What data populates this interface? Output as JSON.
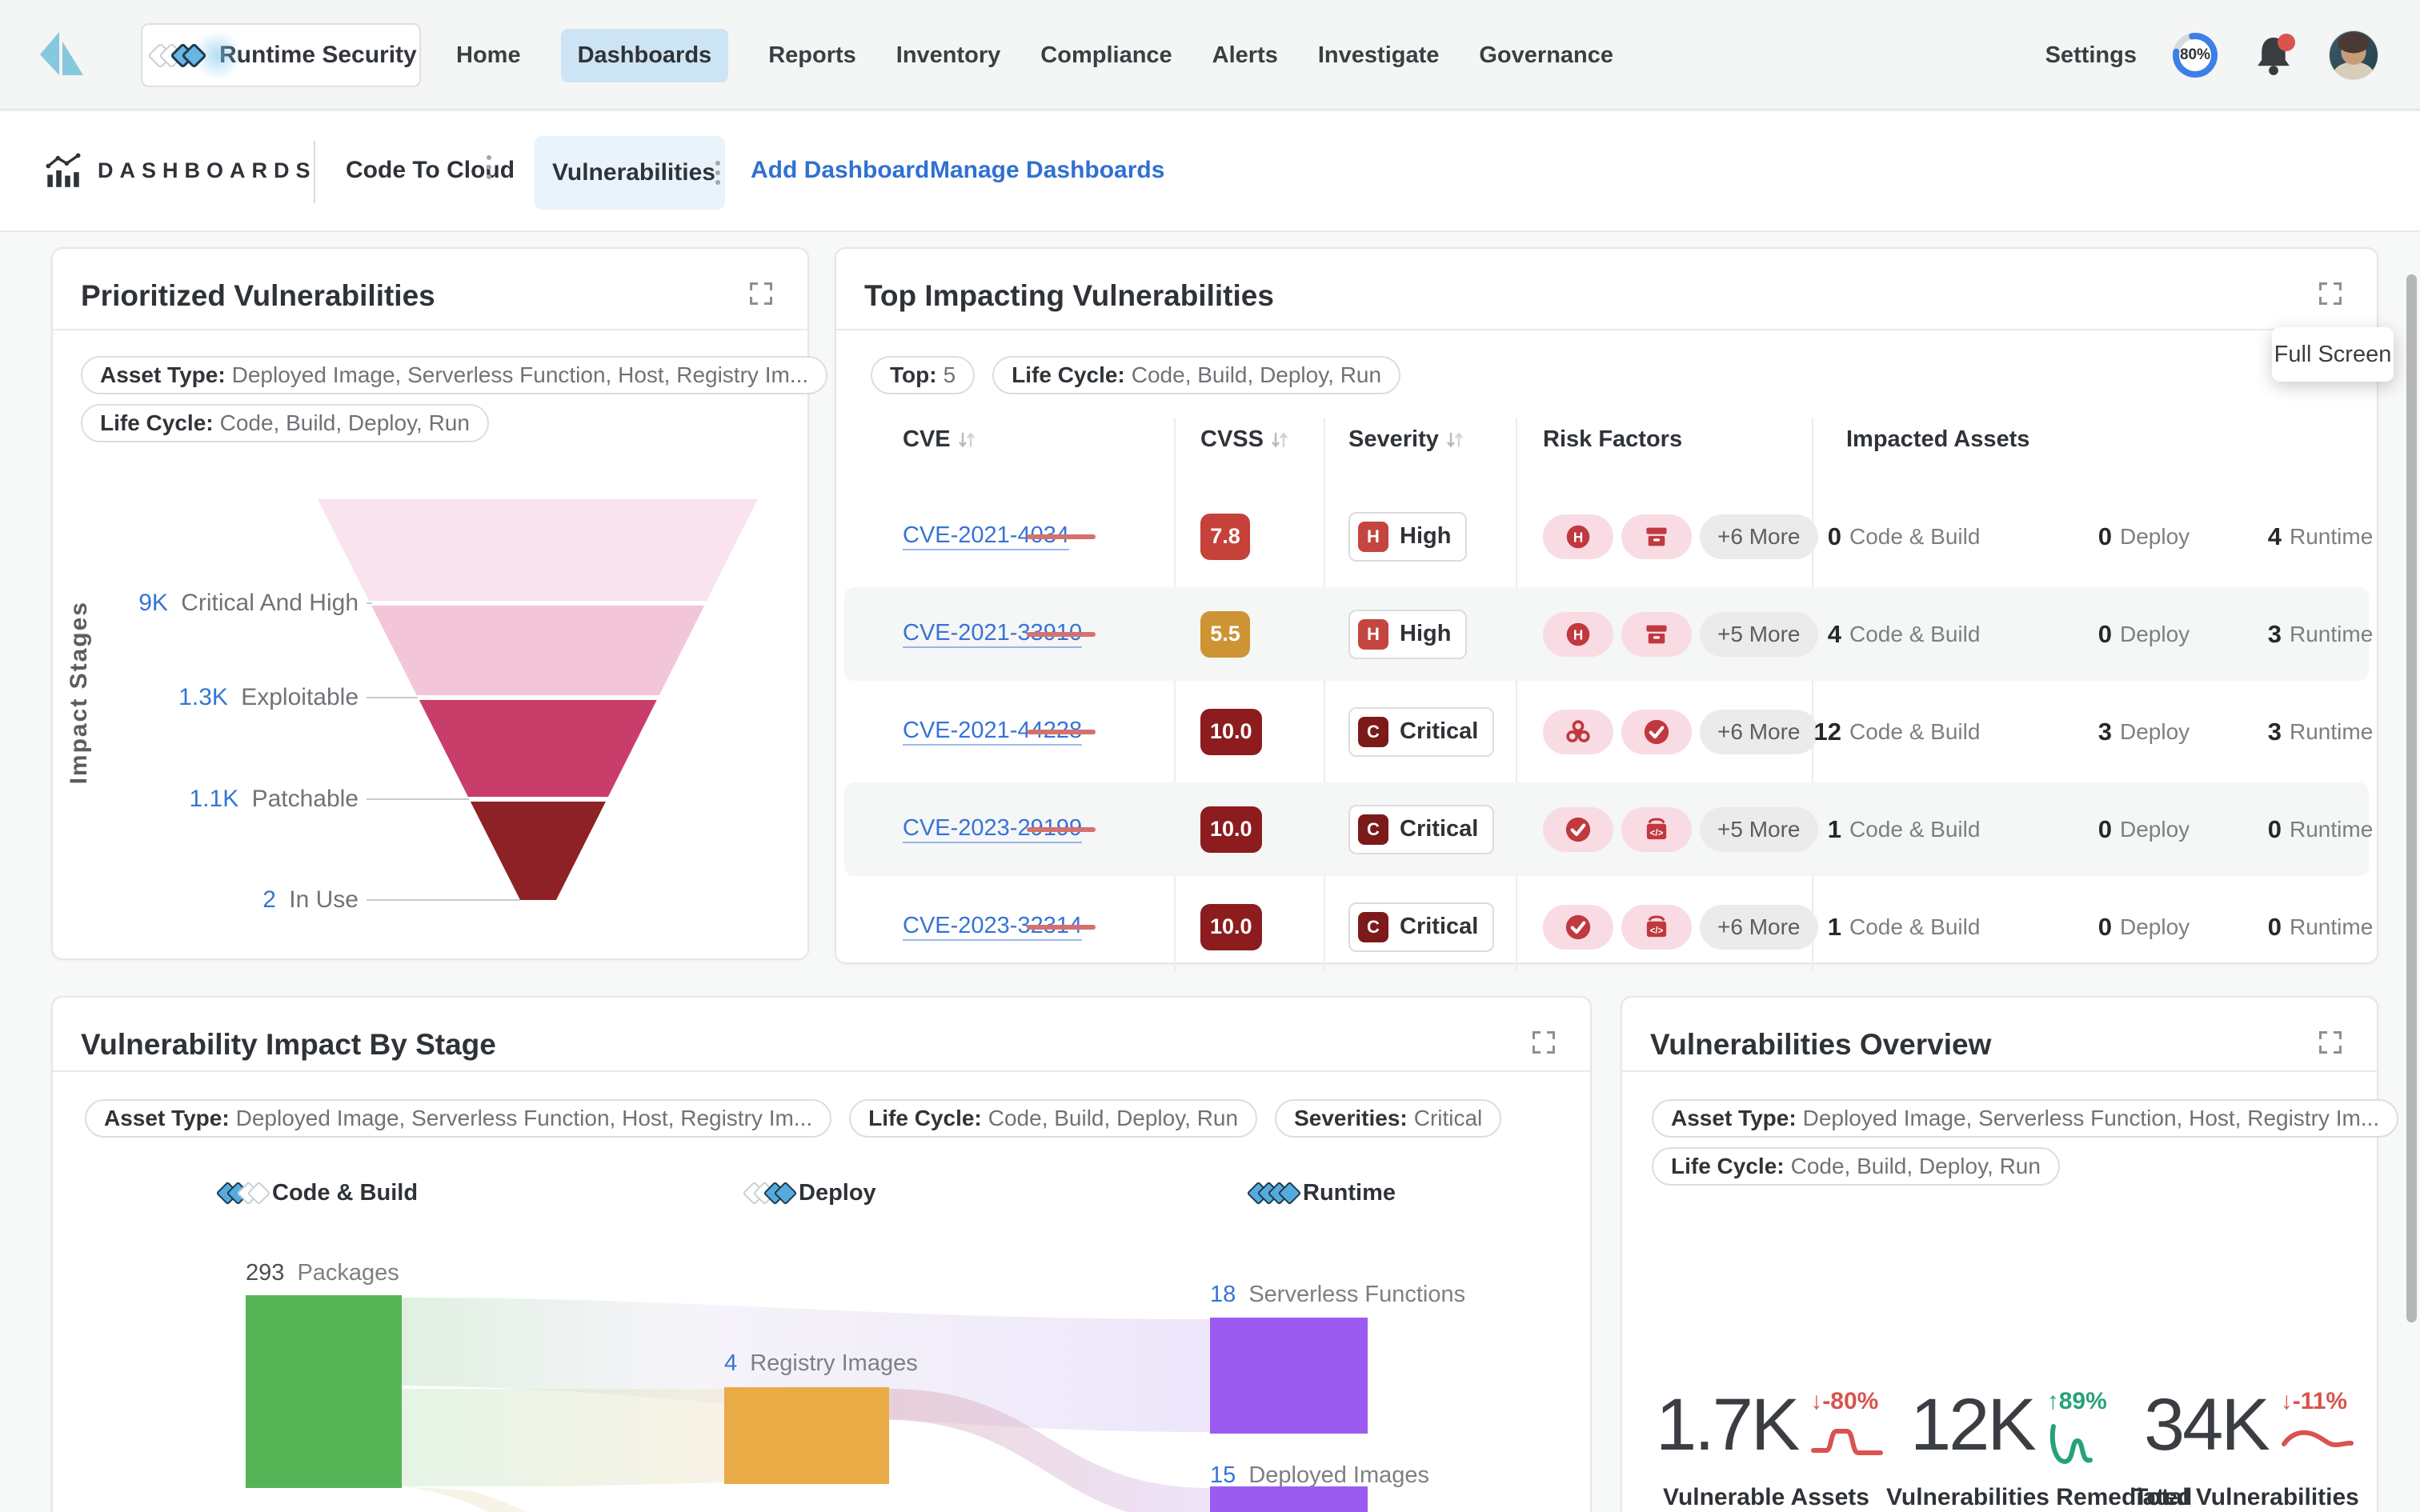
{
  "nav": {
    "product_label": "Runtime Security",
    "items": [
      "Home",
      "Dashboards",
      "Reports",
      "Inventory",
      "Compliance",
      "Alerts",
      "Investigate",
      "Governance"
    ],
    "active_item": "Dashboards",
    "settings_label": "Settings",
    "usage_percent": "80%"
  },
  "breadcrumb": {
    "section_label": "DASHBOARDS",
    "tab_code_to_cloud": "Code To Cloud",
    "tab_vulnerabilities": "Vulnerabilities",
    "add_dashboard_label": "Add Dashboard",
    "manage_dashboards_label": "Manage Dashboards"
  },
  "tooltip_full_screen": "Full Screen",
  "prioritized": {
    "title": "Prioritized Vulnerabilities",
    "filters": [
      {
        "label": "Asset Type:",
        "value": "Deployed Image, Serverless Function, Host, Registry Im..."
      },
      {
        "label": "Life Cycle:",
        "value": "Code, Build, Deploy, Run"
      }
    ],
    "axis_label": "Impact Stages",
    "funnel": {
      "type": "funnel",
      "stages": [
        {
          "value": "9K",
          "label": "Critical And High",
          "color": "#f8e3ee"
        },
        {
          "value": "1.3K",
          "label": "Exploitable",
          "color": "#f2c5d8"
        },
        {
          "value": "1.1K",
          "label": "Patchable",
          "color": "#c93d6a"
        },
        {
          "value": "2",
          "label": "In Use",
          "color": "#8d2125"
        }
      ]
    }
  },
  "top_impacting": {
    "title": "Top Impacting Vulnerabilities",
    "filters": [
      {
        "label": "Top:",
        "value": "5"
      },
      {
        "label": "Life Cycle:",
        "value": "Code, Build, Deploy, Run"
      }
    ],
    "columns": [
      "CVE",
      "CVSS",
      "Severity",
      "Risk Factors",
      "Impacted Assets"
    ],
    "rows": [
      {
        "cve": "CVE-2021-4034",
        "cvss": "7.8",
        "cvss_color": "#c5413a",
        "severity_letter": "H",
        "severity_label": "High",
        "severity_color": "#c4463f",
        "risk_icons": [
          "h-severity",
          "archive"
        ],
        "more": "+6 More",
        "assets": [
          {
            "n": "0",
            "label": "Code & Build"
          },
          {
            "n": "0",
            "label": "Deploy"
          },
          {
            "n": "4",
            "label": "Runtime"
          }
        ]
      },
      {
        "cve": "CVE-2021-33910",
        "cvss": "5.5",
        "cvss_color": "#cd9434",
        "severity_letter": "H",
        "severity_label": "High",
        "severity_color": "#c4463f",
        "risk_icons": [
          "h-severity",
          "archive"
        ],
        "more": "+5 More",
        "assets": [
          {
            "n": "4",
            "label": "Code & Build"
          },
          {
            "n": "0",
            "label": "Deploy"
          },
          {
            "n": "3",
            "label": "Runtime"
          }
        ]
      },
      {
        "cve": "CVE-2021-44228",
        "cvss": "10.0",
        "cvss_color": "#8c1c1e",
        "severity_letter": "C",
        "severity_label": "Critical",
        "severity_color": "#7c1a1a",
        "risk_icons": [
          "biohazard",
          "check"
        ],
        "more": "+6 More",
        "assets": [
          {
            "n": "12",
            "label": "Code & Build"
          },
          {
            "n": "3",
            "label": "Deploy"
          },
          {
            "n": "3",
            "label": "Runtime"
          }
        ]
      },
      {
        "cve": "CVE-2023-29199",
        "cvss": "10.0",
        "cvss_color": "#8c1c1e",
        "severity_letter": "C",
        "severity_label": "Critical",
        "severity_color": "#7c1a1a",
        "risk_icons": [
          "check",
          "code-box"
        ],
        "more": "+5 More",
        "assets": [
          {
            "n": "1",
            "label": "Code & Build"
          },
          {
            "n": "0",
            "label": "Deploy"
          },
          {
            "n": "0",
            "label": "Runtime"
          }
        ]
      },
      {
        "cve": "CVE-2023-32314",
        "cvss": "10.0",
        "cvss_color": "#8c1c1e",
        "severity_letter": "C",
        "severity_label": "Critical",
        "severity_color": "#7c1a1a",
        "risk_icons": [
          "check",
          "code-box"
        ],
        "more": "+6 More",
        "assets": [
          {
            "n": "1",
            "label": "Code & Build"
          },
          {
            "n": "0",
            "label": "Deploy"
          },
          {
            "n": "0",
            "label": "Runtime"
          }
        ]
      }
    ]
  },
  "impact_by_stage": {
    "title": "Vulnerability Impact By Stage",
    "filters": [
      {
        "label": "Asset Type:",
        "value": "Deployed Image, Serverless Function, Host, Registry Im..."
      },
      {
        "label": "Life Cycle:",
        "value": "Code, Build, Deploy, Run"
      },
      {
        "label": "Severities:",
        "value": "Critical"
      }
    ],
    "sankey": {
      "type": "sankey",
      "stages": [
        "Code & Build",
        "Deploy",
        "Runtime"
      ],
      "nodes": [
        {
          "stage": "Code & Build",
          "value": "293",
          "label": "Packages",
          "color": "#56b457"
        },
        {
          "stage": "Deploy",
          "value": "4",
          "label": "Registry Images",
          "color": "#e9ab45"
        },
        {
          "stage": "Runtime",
          "value": "18",
          "label": "Serverless Functions",
          "color": "#9b5bf0"
        },
        {
          "stage": "Runtime",
          "value": "15",
          "label": "Deployed Images",
          "color": "#9b5bf0"
        }
      ],
      "links": [
        {
          "source": "Packages",
          "target": "Serverless Functions"
        },
        {
          "source": "Packages",
          "target": "Registry Images"
        },
        {
          "source": "Registry Images",
          "target": "Deployed Images"
        }
      ]
    }
  },
  "overview": {
    "title": "Vulnerabilities Overview",
    "filters": [
      {
        "label": "Asset Type:",
        "value": "Deployed Image, Serverless Function, Host, Registry Im..."
      },
      {
        "label": "Life Cycle:",
        "value": "Code, Build, Deploy, Run"
      }
    ],
    "stats": [
      {
        "value": "1.7K",
        "arrow": "↓",
        "delta": "-80%",
        "color": "#d9534f",
        "trend": "down",
        "label": "Vulnerable Assets"
      },
      {
        "value": "12K",
        "arrow": "↑",
        "delta": "89%",
        "color": "#27a17b",
        "trend": "up",
        "label": "Vulnerabilities Remediated"
      },
      {
        "value": "34K",
        "arrow": "↓",
        "delta": "-11%",
        "color": "#d9534f",
        "trend": "down",
        "label": "Total Vulnerabilities"
      }
    ]
  }
}
